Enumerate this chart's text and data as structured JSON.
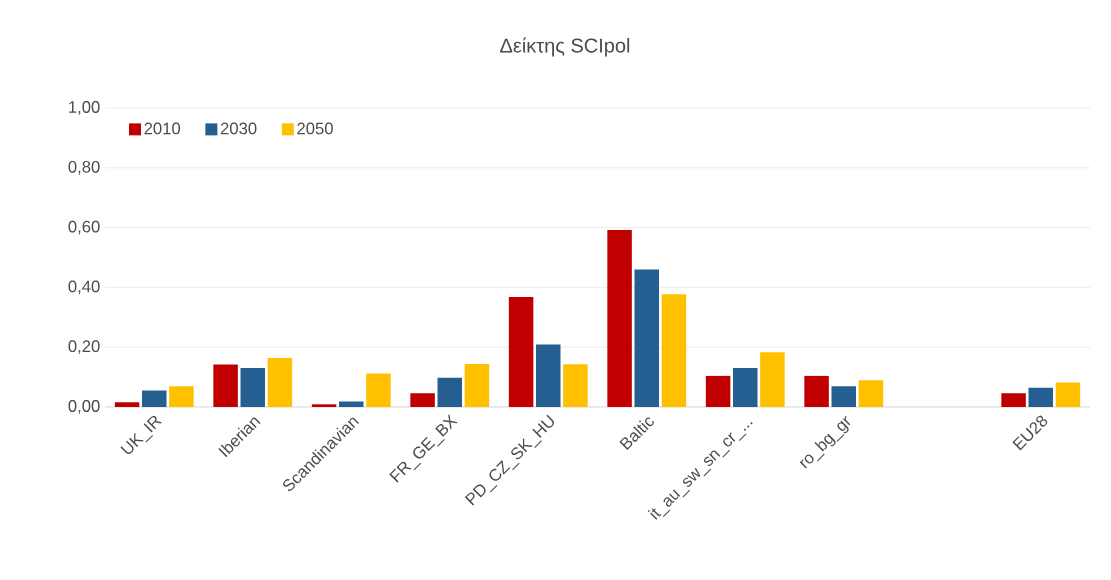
{
  "chart_data": {
    "type": "bar",
    "title": "Δείκτης SCIpol",
    "categories": [
      "UK_IR",
      "Iberian",
      "Scandinavian",
      "FR_GE_BX",
      "PD_CZ_SK_HU",
      "Baltic",
      "it_au_sw_sn_cr_...",
      "ro_bg_gr",
      null,
      "EU28"
    ],
    "series": [
      {
        "name": "2010",
        "color": "#c00000",
        "values": [
          0.016,
          0.142,
          0.009,
          0.046,
          0.368,
          0.592,
          0.104,
          0.104,
          null,
          0.046
        ]
      },
      {
        "name": "2030",
        "color": "#255e91",
        "values": [
          0.055,
          0.13,
          0.018,
          0.098,
          0.209,
          0.46,
          0.13,
          0.069,
          null,
          0.064
        ]
      },
      {
        "name": "2050",
        "color": "#ffc000",
        "values": [
          0.069,
          0.164,
          0.112,
          0.144,
          0.143,
          0.377,
          0.183,
          0.089,
          null,
          0.082
        ]
      }
    ],
    "ylim": [
      0,
      1
    ],
    "yticks": [
      {
        "value": 0,
        "label": "0,00"
      },
      {
        "value": 0.2,
        "label": "0,20"
      },
      {
        "value": 0.4,
        "label": "0,40"
      },
      {
        "value": 0.6,
        "label": "0,60"
      },
      {
        "value": 0.8,
        "label": "0,80"
      },
      {
        "value": 1,
        "label": "1,00"
      }
    ],
    "grid": "y",
    "legend": "top left"
  }
}
